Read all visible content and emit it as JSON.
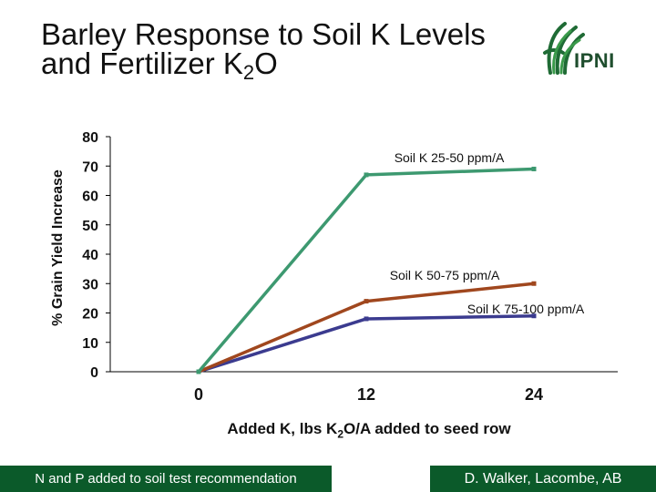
{
  "header": {
    "title_line1": "Barley Response to Soil K Levels",
    "title_line2_prefix": "and Fertilizer K",
    "title_line2_sub": "2",
    "title_line2_suffix": "O",
    "logo_text": "IPNI"
  },
  "chart_data": {
    "type": "line",
    "x": [
      0,
      12,
      24
    ],
    "x_tick_labels": [
      "0",
      "12",
      "24"
    ],
    "y_ticks": [
      0,
      10,
      20,
      30,
      40,
      50,
      60,
      70,
      80
    ],
    "ylim": [
      0,
      80
    ],
    "ylabel": "% Grain Yield Increase",
    "xlabel_prefix": "Added K, lbs K",
    "xlabel_sub": "2",
    "xlabel_suffix": "O/A added to seed row",
    "grid": false,
    "series": [
      {
        "name": "Soil K 25-50 ppm/A",
        "values": [
          0,
          67,
          69
        ],
        "color": "#3d9970"
      },
      {
        "name": "Soil K 50-75 ppm/A",
        "values": [
          0,
          24,
          30
        ],
        "color": "#a0471e"
      },
      {
        "name": "Soil K 75-100 ppm/A",
        "values": [
          0,
          18,
          19
        ],
        "color": "#3b3b8f"
      }
    ]
  },
  "footer": {
    "left": "N and P added to soil test recommendation",
    "right": "D. Walker, Lacombe, AB"
  }
}
